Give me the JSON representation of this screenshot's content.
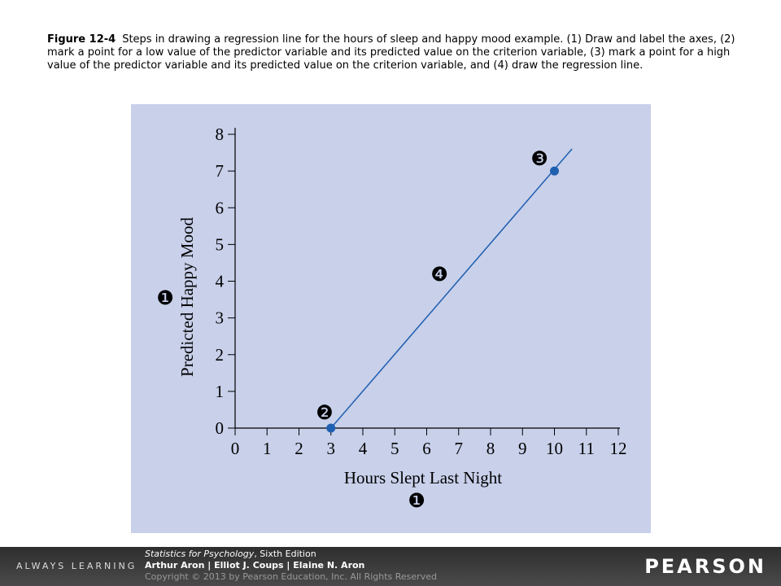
{
  "caption": {
    "label": "Figure 12-4",
    "text": "Steps in drawing a regression line for the hours of sleep and happy mood example. (1) Draw and label the axes, (2) mark a point for a low value of the predictor variable and its predicted value on the criterion variable, (3) mark a point for a high value of the predictor variable and its predicted value on the criterion variable, and (4) draw the regression line."
  },
  "chart_data": {
    "type": "scatter",
    "x_label": "Hours Slept Last Night",
    "y_label": "Predicted Happy Mood",
    "x": [
      3,
      10
    ],
    "values": [
      0,
      7
    ],
    "color": "#1f5fb0",
    "regression_line": {
      "x": [
        3,
        10.55
      ],
      "values": [
        0,
        7.6
      ],
      "color": "#1f5fb0"
    },
    "xlim": [
      0,
      12
    ],
    "xticks": [
      0,
      1,
      2,
      3,
      4,
      5,
      6,
      7,
      8,
      9,
      10,
      11,
      12
    ],
    "ylim": [
      0,
      8
    ],
    "yticks": [
      0,
      1,
      2,
      3,
      4,
      5,
      6,
      7,
      8
    ],
    "annotations": [
      "❶",
      "❶",
      "❷",
      "❸",
      "❹"
    ]
  },
  "footer": {
    "brand_left": "ALWAYS LEARNING",
    "book_title": "Statistics for Psychology",
    "edition": ", Sixth Edition",
    "authors": "Arthur Aron | Elliot J. Coups | Elaine N. Aron",
    "copyright": "Copyright © 2013 by Pearson Education, Inc. All Rights Reserved",
    "brand_right": "PEARSON"
  }
}
